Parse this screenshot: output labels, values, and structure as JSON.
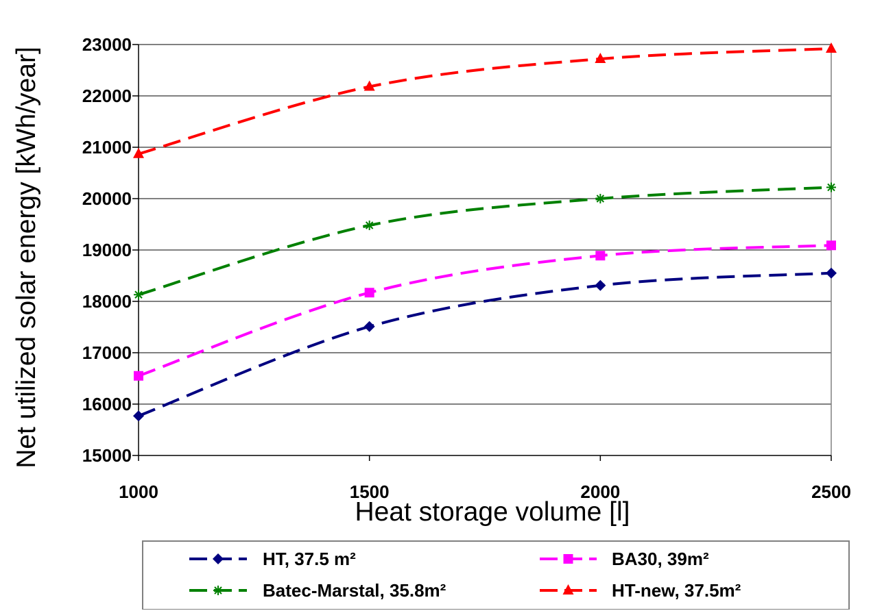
{
  "chart_data": {
    "type": "line",
    "title": "",
    "xlabel": "Heat storage volume  [l]",
    "ylabel": "Net utilized solar energy  [kWh/year]",
    "x": [
      1000,
      1500,
      2000,
      2500
    ],
    "x_tick_labels": [
      "1000",
      "1500",
      "2000",
      "2500"
    ],
    "y_tick_labels": [
      "15000",
      "16000",
      "17000",
      "18000",
      "19000",
      "20000",
      "21000",
      "22000",
      "23000"
    ],
    "xlim": [
      1000,
      2500
    ],
    "ylim": [
      15000,
      23000
    ],
    "y_major_step": 1000,
    "grid": true,
    "legend_position": "bottom",
    "series": [
      {
        "name": "HT, 37.5 m²",
        "color": "#000080",
        "marker": "diamond",
        "line_style": "dashed",
        "values": [
          15770,
          17510,
          18310,
          18550
        ]
      },
      {
        "name": "BA30, 39m²",
        "color": "#ff00ff",
        "marker": "square",
        "line_style": "dashed",
        "values": [
          16550,
          18170,
          18890,
          19090
        ]
      },
      {
        "name": "Batec-Marstal, 35.8m²",
        "color": "#008000",
        "marker": "asterisk",
        "line_style": "dashed",
        "values": [
          18130,
          19480,
          20000,
          20220
        ]
      },
      {
        "name": "HT-new, 37.5m²",
        "color": "#ff0000",
        "marker": "triangle",
        "line_style": "dashed",
        "values": [
          20870,
          22180,
          22720,
          22920
        ]
      }
    ]
  }
}
